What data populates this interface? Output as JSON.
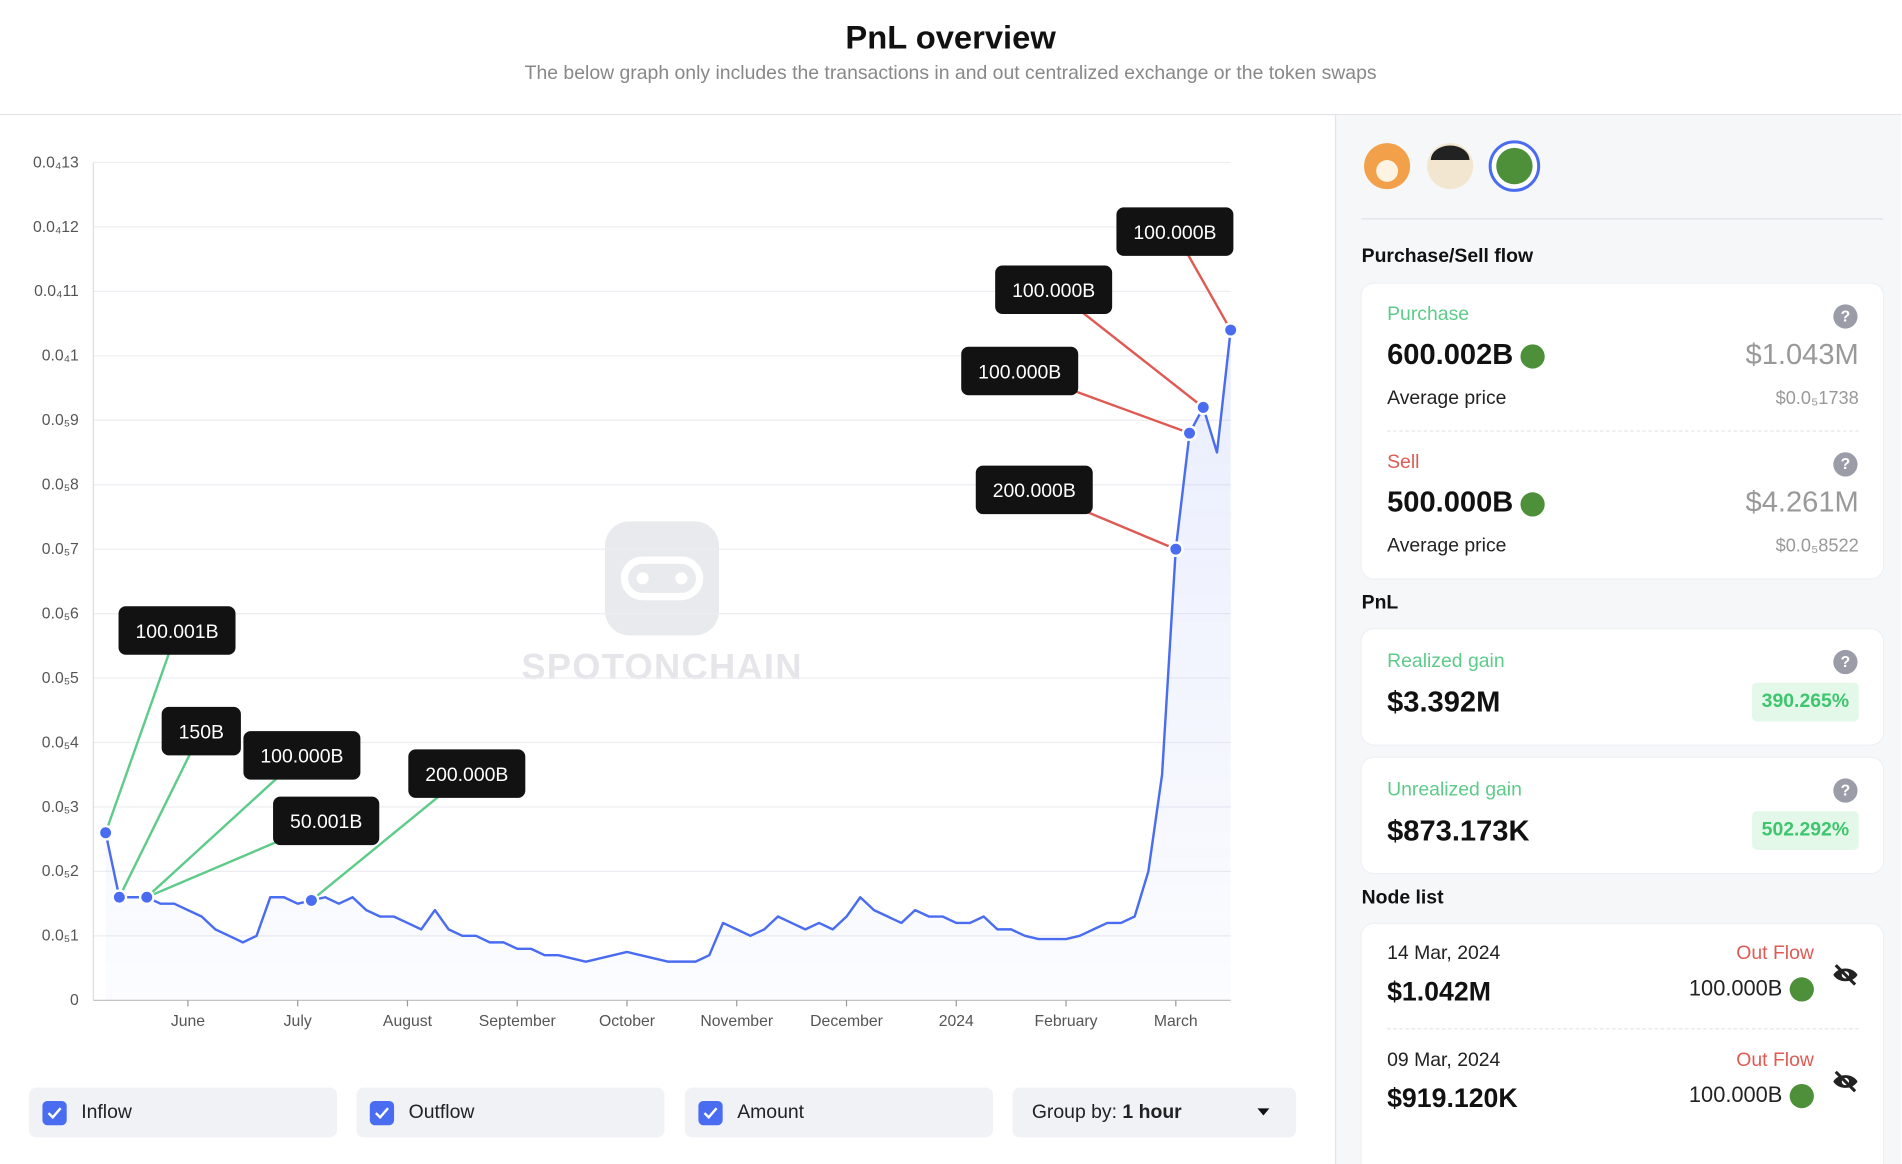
{
  "header": {
    "title": "PnL overview",
    "subtitle": "The below graph only includes the transactions in and out centralized exchange or the token swaps"
  },
  "chart_data": {
    "type": "line",
    "watermark": "SPOTONCHAIN",
    "categories": [
      null,
      null,
      null,
      null,
      null,
      null,
      "June",
      null,
      null,
      null,
      null,
      null,
      null,
      null,
      "July",
      null,
      null,
      null,
      null,
      null,
      null,
      null,
      "August",
      null,
      null,
      null,
      null,
      null,
      null,
      null,
      "September",
      null,
      null,
      null,
      null,
      null,
      null,
      null,
      "October",
      null,
      null,
      null,
      null,
      null,
      null,
      null,
      "November",
      null,
      null,
      null,
      null,
      null,
      null,
      null,
      "December",
      null,
      null,
      null,
      null,
      null,
      null,
      null,
      "2024",
      null,
      null,
      null,
      null,
      null,
      null,
      null,
      "February",
      null,
      null,
      null,
      null,
      null,
      null,
      null,
      "March",
      null,
      null,
      null,
      null
    ],
    "series": [
      {
        "name": "Amount",
        "color": "#4a6cf0",
        "values": [
          2.6e-06,
          1.6e-06,
          1.6e-06,
          1.6e-06,
          1.5e-06,
          1.5e-06,
          1.4e-06,
          1.3e-06,
          1.1e-06,
          1e-06,
          9e-07,
          1e-06,
          1.6e-06,
          1.6e-06,
          1.5e-06,
          1.55e-06,
          1.6e-06,
          1.5e-06,
          1.6e-06,
          1.4e-06,
          1.3e-06,
          1.3e-06,
          1.2e-06,
          1.1e-06,
          1.4e-06,
          1.1e-06,
          1e-06,
          1e-06,
          9e-07,
          9e-07,
          8e-07,
          8e-07,
          7e-07,
          7e-07,
          6.5e-07,
          6e-07,
          6.5e-07,
          7e-07,
          7.5e-07,
          7e-07,
          6.5e-07,
          6e-07,
          6e-07,
          6e-07,
          7e-07,
          1.2e-06,
          1.1e-06,
          1e-06,
          1.1e-06,
          1.3e-06,
          1.2e-06,
          1.1e-06,
          1.2e-06,
          1.1e-06,
          1.3e-06,
          1.6e-06,
          1.4e-06,
          1.3e-06,
          1.2e-06,
          1.4e-06,
          1.3e-06,
          1.3e-06,
          1.2e-06,
          1.2e-06,
          1.3e-06,
          1.1e-06,
          1.1e-06,
          1e-06,
          9.5e-07,
          9.5e-07,
          9.5e-07,
          1e-06,
          1.1e-06,
          1.2e-06,
          1.2e-06,
          1.3e-06,
          2e-06,
          3.5e-06,
          7e-06,
          8.8e-06,
          9.2e-06,
          8.5e-06,
          1.04e-05
        ]
      }
    ],
    "flow_markers": [
      {
        "name": "Inflow",
        "color": "#5ecb8a",
        "points": [
          {
            "label": "100.001B",
            "index": 0,
            "value": 2.6e-06
          },
          {
            "label": "150B",
            "index": 1,
            "value": 1.6e-06
          },
          {
            "label": "100.000B",
            "index": 3,
            "value": 1.6e-06
          },
          {
            "label": "50.001B",
            "index": 3,
            "value": 1.6e-06
          },
          {
            "label": "200.000B",
            "index": 15,
            "value": 1.55e-06
          }
        ]
      },
      {
        "name": "Outflow",
        "color": "#e05a54",
        "points": [
          {
            "label": "200.000B",
            "index": 78,
            "value": 7e-06
          },
          {
            "label": "100.000B",
            "index": 79,
            "value": 8.8e-06
          },
          {
            "label": "100.000B",
            "index": 80,
            "value": 9.2e-06
          },
          {
            "label": "100.000B",
            "index": 82,
            "value": 1.04e-05
          }
        ]
      }
    ],
    "ylim": [
      0,
      1.3e-05
    ],
    "yticks": [
      0,
      {
        "value": 1e-06,
        "label": "0.0₅1"
      },
      {
        "value": 2e-06,
        "label": "0.0₅2"
      },
      {
        "value": 3e-06,
        "label": "0.0₅3"
      },
      {
        "value": 4e-06,
        "label": "0.0₅4"
      },
      {
        "value": 5e-06,
        "label": "0.0₅5"
      },
      {
        "value": 6e-06,
        "label": "0.0₅6"
      },
      {
        "value": 7e-06,
        "label": "0.0₅7"
      },
      {
        "value": 8e-06,
        "label": "0.0₅8"
      },
      {
        "value": 9e-06,
        "label": "0.0₅9"
      },
      {
        "value": 1e-05,
        "label": "0.0₄1"
      },
      {
        "value": 1.1e-05,
        "label": "0.0₄11"
      },
      {
        "value": 1.2e-05,
        "label": "0.0₄12"
      },
      {
        "value": 1.3e-05,
        "label": "0.0₄13"
      }
    ],
    "grid": true
  },
  "controls": {
    "group_by_label": "Group by:",
    "group_by_value": "1 hour"
  },
  "panel": {
    "flow_title": "Purchase/Sell flow",
    "purchase": {
      "label": "Purchase",
      "amount": "600.002B",
      "usd": "$1.043M",
      "avg_label": "Average price",
      "avg_price": "$0.0₅1738"
    },
    "sell": {
      "label": "Sell",
      "amount": "500.000B",
      "usd": "$4.261M",
      "avg_label": "Average price",
      "avg_price": "$0.0₅8522"
    },
    "pnl_title": "PnL",
    "realized": {
      "label": "Realized gain",
      "value": "$3.392M",
      "percent": "390.265%"
    },
    "unrealized": {
      "label": "Unrealized gain",
      "value": "$873.173K",
      "percent": "502.292%"
    },
    "node_list_title": "Node list",
    "nodes": [
      {
        "date": "14 Mar, 2024",
        "value": "$1.042M",
        "direction": "Out Flow",
        "amount": "100.000B"
      },
      {
        "date": "09 Mar, 2024",
        "value": "$919.120K",
        "direction": "Out Flow",
        "amount": "100.000B"
      }
    ]
  }
}
